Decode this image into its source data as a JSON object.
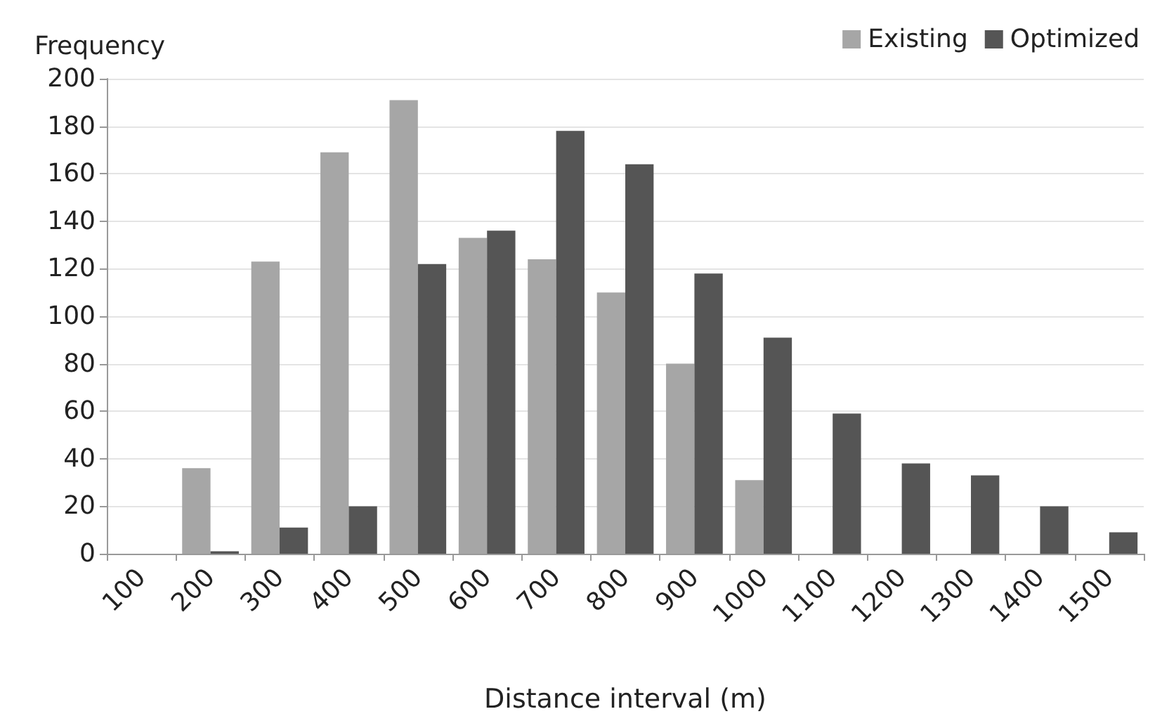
{
  "chart_data": {
    "type": "bar",
    "xlabel": "Distance interval (m)",
    "ylabel": "Frequency",
    "categories": [
      "100",
      "200",
      "300",
      "400",
      "500",
      "600",
      "700",
      "800",
      "900",
      "1000",
      "1100",
      "1200",
      "1300",
      "1400",
      "1500"
    ],
    "series": [
      {
        "name": "Existing",
        "color": "#a6a6a6",
        "values": [
          0,
          36,
          123,
          169,
          191,
          133,
          124,
          110,
          80,
          31,
          0,
          0,
          0,
          0,
          0
        ]
      },
      {
        "name": "Optimized",
        "color": "#555555",
        "values": [
          0,
          1,
          11,
          20,
          122,
          136,
          178,
          164,
          118,
          91,
          59,
          38,
          33,
          20,
          9
        ]
      }
    ],
    "ylim": [
      0,
      200
    ],
    "yticks": [
      0,
      20,
      40,
      60,
      80,
      100,
      120,
      140,
      160,
      180,
      200
    ],
    "grid": "y",
    "legend": "top right"
  }
}
